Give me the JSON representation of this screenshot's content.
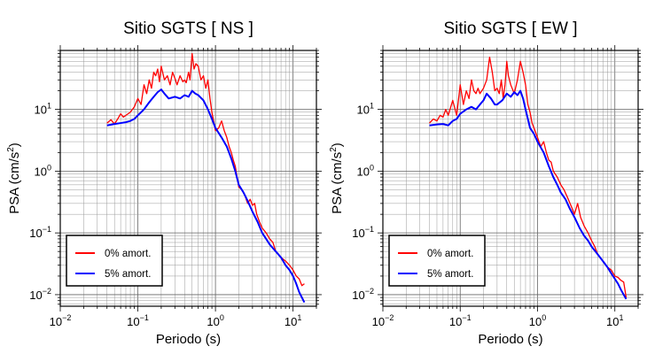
{
  "chart_data": [
    {
      "type": "line",
      "title": "Sitio SGTS [ NS ]",
      "xlabel": "Periodo (s)",
      "ylabel_base": "PSA (cm/s",
      "ylabel_sup": "2",
      "ylabel_end": ")",
      "x_scale": "log",
      "y_scale": "log",
      "xlim": [
        0.01,
        20
      ],
      "ylim": [
        0.0065,
        90
      ],
      "x_ticks": [
        {
          "value": 0.01,
          "base": "10",
          "exp": "−2"
        },
        {
          "value": 0.1,
          "base": "10",
          "exp": "−1"
        },
        {
          "value": 1,
          "base": "10",
          "exp": "0"
        },
        {
          "value": 10,
          "base": "10",
          "exp": "1"
        }
      ],
      "y_ticks": [
        {
          "value": 0.01,
          "base": "10",
          "exp": "−2"
        },
        {
          "value": 0.1,
          "base": "10",
          "exp": "−1"
        },
        {
          "value": 1,
          "base": "10",
          "exp": "0"
        },
        {
          "value": 10,
          "base": "10",
          "exp": "1"
        }
      ],
      "grid": true,
      "legend_position": "bottom-left",
      "series": [
        {
          "name": "0% amort.",
          "color": "#ff0000",
          "points": [
            [
              0.04,
              6
            ],
            [
              0.045,
              6.8
            ],
            [
              0.05,
              5.8
            ],
            [
              0.055,
              7
            ],
            [
              0.06,
              8.5
            ],
            [
              0.065,
              7.5
            ],
            [
              0.07,
              8
            ],
            [
              0.08,
              9
            ],
            [
              0.09,
              11
            ],
            [
              0.1,
              15
            ],
            [
              0.11,
              12
            ],
            [
              0.12,
              25
            ],
            [
              0.13,
              18
            ],
            [
              0.14,
              30
            ],
            [
              0.15,
              22
            ],
            [
              0.16,
              40
            ],
            [
              0.17,
              35
            ],
            [
              0.18,
              45
            ],
            [
              0.19,
              28
            ],
            [
              0.2,
              50
            ],
            [
              0.22,
              30
            ],
            [
              0.24,
              35
            ],
            [
              0.26,
              25
            ],
            [
              0.28,
              40
            ],
            [
              0.3,
              32
            ],
            [
              0.32,
              25
            ],
            [
              0.35,
              35
            ],
            [
              0.38,
              28
            ],
            [
              0.4,
              30
            ],
            [
              0.42,
              27
            ],
            [
              0.45,
              40
            ],
            [
              0.47,
              30
            ],
            [
              0.5,
              80
            ],
            [
              0.53,
              45
            ],
            [
              0.56,
              55
            ],
            [
              0.6,
              50
            ],
            [
              0.65,
              30
            ],
            [
              0.7,
              35
            ],
            [
              0.75,
              22
            ],
            [
              0.8,
              30
            ],
            [
              0.85,
              15
            ],
            [
              0.9,
              9
            ],
            [
              1.0,
              4.5
            ],
            [
              1.1,
              5
            ],
            [
              1.2,
              6.5
            ],
            [
              1.3,
              4.5
            ],
            [
              1.4,
              3.5
            ],
            [
              1.5,
              2.5
            ],
            [
              1.6,
              2
            ],
            [
              1.7,
              1.5
            ],
            [
              1.8,
              1.2
            ],
            [
              1.9,
              0.8
            ],
            [
              2.0,
              0.55
            ],
            [
              2.2,
              0.5
            ],
            [
              2.4,
              0.4
            ],
            [
              2.6,
              0.3
            ],
            [
              2.8,
              0.35
            ],
            [
              3.0,
              0.28
            ],
            [
              3.2,
              0.3
            ],
            [
              3.4,
              0.2
            ],
            [
              3.7,
              0.15
            ],
            [
              4.0,
              0.12
            ],
            [
              4.5,
              0.1
            ],
            [
              5,
              0.08
            ],
            [
              5.5,
              0.07
            ],
            [
              6,
              0.05
            ],
            [
              6.5,
              0.045
            ],
            [
              7,
              0.04
            ],
            [
              8,
              0.035
            ],
            [
              9,
              0.03
            ],
            [
              10,
              0.025
            ],
            [
              11,
              0.02
            ],
            [
              12,
              0.018
            ],
            [
              13,
              0.014
            ],
            [
              14,
              0.015
            ]
          ]
        },
        {
          "name": "5% amort.",
          "color": "#0000ff",
          "points": [
            [
              0.04,
              5.5
            ],
            [
              0.05,
              5.8
            ],
            [
              0.06,
              6
            ],
            [
              0.07,
              6.2
            ],
            [
              0.08,
              6.5
            ],
            [
              0.09,
              7
            ],
            [
              0.1,
              8
            ],
            [
              0.12,
              10
            ],
            [
              0.14,
              13
            ],
            [
              0.16,
              16
            ],
            [
              0.18,
              19
            ],
            [
              0.2,
              21
            ],
            [
              0.22,
              18
            ],
            [
              0.25,
              15
            ],
            [
              0.3,
              16
            ],
            [
              0.35,
              15
            ],
            [
              0.4,
              17
            ],
            [
              0.45,
              16
            ],
            [
              0.5,
              20
            ],
            [
              0.55,
              18
            ],
            [
              0.6,
              17
            ],
            [
              0.7,
              14
            ],
            [
              0.8,
              10
            ],
            [
              0.9,
              7
            ],
            [
              1.0,
              5
            ],
            [
              1.2,
              3.5
            ],
            [
              1.4,
              2.5
            ],
            [
              1.6,
              1.6
            ],
            [
              1.8,
              1
            ],
            [
              2.0,
              0.6
            ],
            [
              2.3,
              0.45
            ],
            [
              2.6,
              0.33
            ],
            [
              3.0,
              0.22
            ],
            [
              3.5,
              0.15
            ],
            [
              4.0,
              0.1
            ],
            [
              4.5,
              0.08
            ],
            [
              5,
              0.065
            ],
            [
              6,
              0.05
            ],
            [
              7,
              0.04
            ],
            [
              8,
              0.03
            ],
            [
              9,
              0.025
            ],
            [
              10,
              0.02
            ],
            [
              11,
              0.015
            ],
            [
              12,
              0.011
            ],
            [
              13,
              0.009
            ],
            [
              14,
              0.0075
            ]
          ]
        }
      ]
    },
    {
      "type": "line",
      "title": "Sitio SGTS [ EW ]",
      "xlabel": "Periodo (s)",
      "ylabel_base": "PSA (cm/s",
      "ylabel_sup": "2",
      "ylabel_end": ")",
      "x_scale": "log",
      "y_scale": "log",
      "xlim": [
        0.01,
        20
      ],
      "ylim": [
        0.0065,
        90
      ],
      "x_ticks": [
        {
          "value": 0.01,
          "base": "10",
          "exp": "−2"
        },
        {
          "value": 0.1,
          "base": "10",
          "exp": "−1"
        },
        {
          "value": 1,
          "base": "10",
          "exp": "0"
        },
        {
          "value": 10,
          "base": "10",
          "exp": "1"
        }
      ],
      "y_ticks": [
        {
          "value": 0.01,
          "base": "10",
          "exp": "−2"
        },
        {
          "value": 0.1,
          "base": "10",
          "exp": "−1"
        },
        {
          "value": 1,
          "base": "10",
          "exp": "0"
        },
        {
          "value": 10,
          "base": "10",
          "exp": "1"
        }
      ],
      "grid": true,
      "legend_position": "bottom-left",
      "series": [
        {
          "name": "0% amort.",
          "color": "#ff0000",
          "points": [
            [
              0.04,
              6
            ],
            [
              0.045,
              7
            ],
            [
              0.05,
              6.5
            ],
            [
              0.055,
              8
            ],
            [
              0.06,
              7.5
            ],
            [
              0.065,
              10
            ],
            [
              0.07,
              8
            ],
            [
              0.08,
              14
            ],
            [
              0.09,
              8
            ],
            [
              0.1,
              25
            ],
            [
              0.11,
              12
            ],
            [
              0.12,
              20
            ],
            [
              0.13,
              15
            ],
            [
              0.14,
              30
            ],
            [
              0.15,
              20
            ],
            [
              0.16,
              18
            ],
            [
              0.17,
              22
            ],
            [
              0.18,
              18
            ],
            [
              0.2,
              22
            ],
            [
              0.22,
              30
            ],
            [
              0.24,
              70
            ],
            [
              0.26,
              40
            ],
            [
              0.28,
              20
            ],
            [
              0.3,
              22
            ],
            [
              0.32,
              18
            ],
            [
              0.34,
              30
            ],
            [
              0.36,
              15
            ],
            [
              0.38,
              25
            ],
            [
              0.4,
              60
            ],
            [
              0.42,
              35
            ],
            [
              0.45,
              25
            ],
            [
              0.5,
              18
            ],
            [
              0.55,
              30
            ],
            [
              0.6,
              60
            ],
            [
              0.65,
              40
            ],
            [
              0.7,
              25
            ],
            [
              0.75,
              12
            ],
            [
              0.8,
              9
            ],
            [
              0.85,
              6
            ],
            [
              0.9,
              5
            ],
            [
              1.0,
              3.5
            ],
            [
              1.1,
              2.5
            ],
            [
              1.2,
              3
            ],
            [
              1.3,
              2
            ],
            [
              1.4,
              1.5
            ],
            [
              1.5,
              1.4
            ],
            [
              1.6,
              1
            ],
            [
              1.8,
              0.8
            ],
            [
              2.0,
              0.6
            ],
            [
              2.2,
              0.5
            ],
            [
              2.5,
              0.35
            ],
            [
              2.8,
              0.25
            ],
            [
              3.0,
              0.2
            ],
            [
              3.3,
              0.3
            ],
            [
              3.6,
              0.18
            ],
            [
              4.0,
              0.13
            ],
            [
              4.5,
              0.1
            ],
            [
              5,
              0.075
            ],
            [
              5.5,
              0.06
            ],
            [
              6,
              0.045
            ],
            [
              7,
              0.035
            ],
            [
              8,
              0.028
            ],
            [
              9,
              0.025
            ],
            [
              10,
              0.02
            ],
            [
              11,
              0.019
            ],
            [
              12,
              0.017
            ],
            [
              13,
              0.016
            ],
            [
              14,
              0.009
            ]
          ]
        },
        {
          "name": "5% amort.",
          "color": "#0000ff",
          "points": [
            [
              0.04,
              5.5
            ],
            [
              0.05,
              5.7
            ],
            [
              0.06,
              5.8
            ],
            [
              0.07,
              5.5
            ],
            [
              0.08,
              6.5
            ],
            [
              0.09,
              7
            ],
            [
              0.1,
              8.5
            ],
            [
              0.12,
              10
            ],
            [
              0.14,
              11
            ],
            [
              0.16,
              10
            ],
            [
              0.18,
              12
            ],
            [
              0.2,
              14
            ],
            [
              0.22,
              18
            ],
            [
              0.25,
              15
            ],
            [
              0.28,
              12
            ],
            [
              0.3,
              12
            ],
            [
              0.35,
              14
            ],
            [
              0.4,
              18
            ],
            [
              0.45,
              16
            ],
            [
              0.5,
              19
            ],
            [
              0.55,
              17
            ],
            [
              0.6,
              20
            ],
            [
              0.65,
              15
            ],
            [
              0.7,
              10
            ],
            [
              0.8,
              5
            ],
            [
              0.9,
              4
            ],
            [
              1.0,
              3
            ],
            [
              1.2,
              2
            ],
            [
              1.4,
              1.2
            ],
            [
              1.6,
              0.8
            ],
            [
              1.8,
              0.6
            ],
            [
              2.0,
              0.45
            ],
            [
              2.3,
              0.35
            ],
            [
              2.6,
              0.25
            ],
            [
              3.0,
              0.18
            ],
            [
              3.5,
              0.12
            ],
            [
              4.0,
              0.09
            ],
            [
              4.5,
              0.075
            ],
            [
              5,
              0.06
            ],
            [
              6,
              0.045
            ],
            [
              7,
              0.035
            ],
            [
              8,
              0.028
            ],
            [
              9,
              0.022
            ],
            [
              10,
              0.018
            ],
            [
              11,
              0.015
            ],
            [
              12,
              0.012
            ],
            [
              13,
              0.01
            ],
            [
              14,
              0.0085
            ]
          ]
        }
      ]
    }
  ]
}
